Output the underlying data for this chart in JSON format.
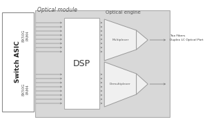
{
  "title": "Optical module",
  "switch_asic_label": "Switch ASIC",
  "dsp_label": "DSP",
  "optical_engine_label": "Optical engine",
  "upper_lane_label": "8X50G\nPAM4",
  "lower_lane_label": "8X50G\nPAM4",
  "mux_label": "Multiplexer",
  "demux_label": "Demultiplexer",
  "fiber_label": "Two Fibers\nDuplex LC Optical Port"
}
